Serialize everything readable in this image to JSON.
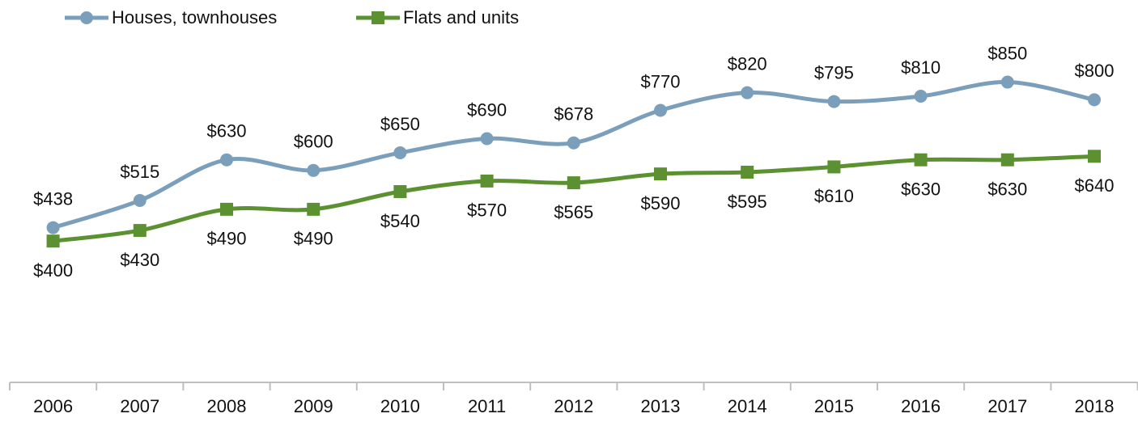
{
  "chart_data": {
    "type": "line",
    "categories": [
      "2006",
      "2007",
      "2008",
      "2009",
      "2010",
      "2011",
      "2012",
      "2013",
      "2014",
      "2015",
      "2016",
      "2017",
      "2018"
    ],
    "series": [
      {
        "name": "Houses, townhouses",
        "color": "#7b9fba",
        "marker": "circle",
        "values": [
          438,
          515,
          630,
          600,
          650,
          690,
          678,
          770,
          820,
          795,
          810,
          850,
          800
        ],
        "value_labels": [
          "$438",
          "$515",
          "$630",
          "$600",
          "$650",
          "$690",
          "$678",
          "$770",
          "$820",
          "$795",
          "$810",
          "$850",
          "$800"
        ]
      },
      {
        "name": "Flats and units",
        "color": "#5b9130",
        "marker": "square",
        "values": [
          400,
          430,
          490,
          490,
          540,
          570,
          565,
          590,
          595,
          610,
          630,
          630,
          640
        ],
        "value_labels": [
          "$400",
          "$430",
          "$490",
          "$490",
          "$540",
          "$570",
          "$565",
          "$590",
          "$595",
          "$610",
          "$630",
          "$630",
          "$640"
        ]
      }
    ],
    "ylim": [
      0,
      1000
    ],
    "legend": "top-left"
  }
}
